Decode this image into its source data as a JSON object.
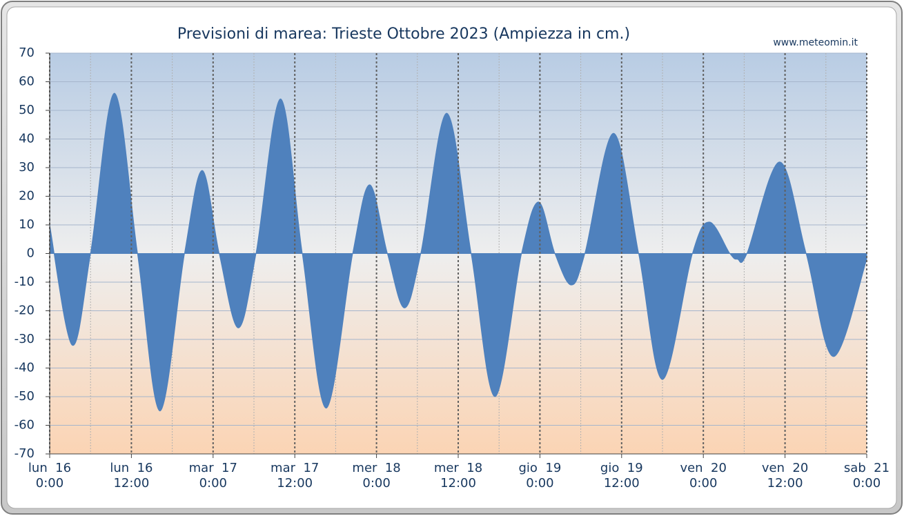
{
  "chart_data": {
    "type": "area",
    "title": "Previsioni di marea: Trieste Ottobre 2023 (Ampiezza in cm.)",
    "source": "www.meteomin.it",
    "x": [
      0,
      3.3,
      6.0,
      9.5,
      12.9,
      16.2,
      19.8,
      22.4,
      24.9,
      27.7,
      30.3,
      33.9,
      37.1,
      40.6,
      44.5,
      47.0,
      49.6,
      52.1,
      54.5,
      58.3,
      61.9,
      65.4,
      69.3,
      71.8,
      74.2,
      76.6,
      78.6,
      82.8,
      86.5,
      90.0,
      94.4,
      96.9,
      99.9,
      101.0,
      102.4,
      107.2,
      111.1,
      115.1,
      120
    ],
    "values": [
      10,
      -32,
      0,
      56,
      0,
      -55,
      0,
      29,
      0,
      -26,
      0,
      54,
      0,
      -54,
      0,
      24,
      0,
      -19,
      0,
      49,
      0,
      -50,
      0,
      18,
      0,
      -11,
      0,
      42,
      0,
      -44,
      0,
      11,
      0,
      -2,
      0,
      32,
      0,
      -36,
      -2
    ],
    "color": "#4f81bd",
    "xlim": [
      0,
      120
    ],
    "xticks": [
      {
        "value": 0,
        "label": [
          "lun  16",
          "0:00"
        ]
      },
      {
        "value": 12,
        "label": [
          "lun  16",
          "12:00"
        ]
      },
      {
        "value": 24,
        "label": [
          "mar  17",
          "0:00"
        ]
      },
      {
        "value": 36,
        "label": [
          "mar  17",
          "12:00"
        ]
      },
      {
        "value": 48,
        "label": [
          "mer  18",
          "0:00"
        ]
      },
      {
        "value": 60,
        "label": [
          "mer  18",
          "12:00"
        ]
      },
      {
        "value": 72,
        "label": [
          "gio  19",
          "0:00"
        ]
      },
      {
        "value": 84,
        "label": [
          "gio  19",
          "12:00"
        ]
      },
      {
        "value": 96,
        "label": [
          "ven  20",
          "0:00"
        ]
      },
      {
        "value": 108,
        "label": [
          "ven  20",
          "12:00"
        ]
      },
      {
        "value": 120,
        "label": [
          "sab  21",
          "0:00"
        ]
      }
    ],
    "x_minor_ticks": [
      6,
      18,
      30,
      42,
      54,
      66,
      78,
      90,
      102,
      114
    ],
    "ylim": [
      -70,
      70
    ],
    "yticks": [
      70,
      60,
      50,
      40,
      30,
      20,
      10,
      0,
      -10,
      -20,
      -30,
      -40,
      -50,
      -60,
      -70
    ],
    "grid": true
  }
}
